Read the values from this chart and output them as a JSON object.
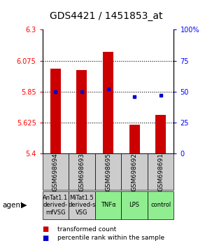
{
  "title": "GDS4421 / 1451853_at",
  "samples": [
    "GSM698694",
    "GSM698693",
    "GSM698695",
    "GSM698692",
    "GSM698691"
  ],
  "agents": [
    "AnTat1.1\nderived-\nmfVSG",
    "MiTat1.5\nderived-s\nVSG",
    "TNFα",
    "LPS",
    "control"
  ],
  "agent_colors": [
    "#cccccc",
    "#cccccc",
    "#90ee90",
    "#90ee90",
    "#90ee90"
  ],
  "bar_values": [
    6.02,
    6.01,
    6.14,
    5.61,
    5.68
  ],
  "dot_values": [
    50,
    50,
    52,
    46,
    47
  ],
  "ylim_left": [
    5.4,
    6.3
  ],
  "ylim_right": [
    0,
    100
  ],
  "yticks_left": [
    5.4,
    5.625,
    5.85,
    6.075,
    6.3
  ],
  "ytick_labels_left": [
    "5.4",
    "5.625",
    "5.85",
    "6.075",
    "6.3"
  ],
  "yticks_right": [
    0,
    25,
    50,
    75,
    100
  ],
  "ytick_labels_right": [
    "0",
    "25",
    "50",
    "75",
    "100%"
  ],
  "bar_color": "#cc0000",
  "dot_color": "#0000cc",
  "bar_width": 0.4,
  "hlines": [
    5.625,
    5.85,
    6.075
  ],
  "legend_items": [
    "transformed count",
    "percentile rank within the sample"
  ],
  "agent_label": "agent",
  "sample_bg_color": "#cccccc",
  "title_fontsize": 10,
  "tick_fontsize": 7,
  "agent_fontsize": 6,
  "gsm_fontsize": 6.5
}
